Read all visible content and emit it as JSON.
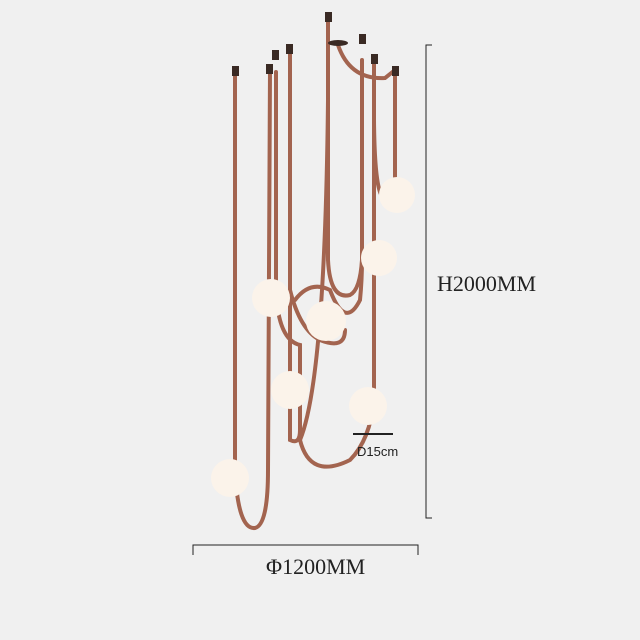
{
  "dimensions": {
    "height_label": "H2000MM",
    "diameter_label": "Φ1200MM",
    "globe_label": "D15cm"
  },
  "colors": {
    "background": "#f0f0f0",
    "strap": "#a3644f",
    "globe": "#fbf3ea",
    "line": "#222222"
  }
}
